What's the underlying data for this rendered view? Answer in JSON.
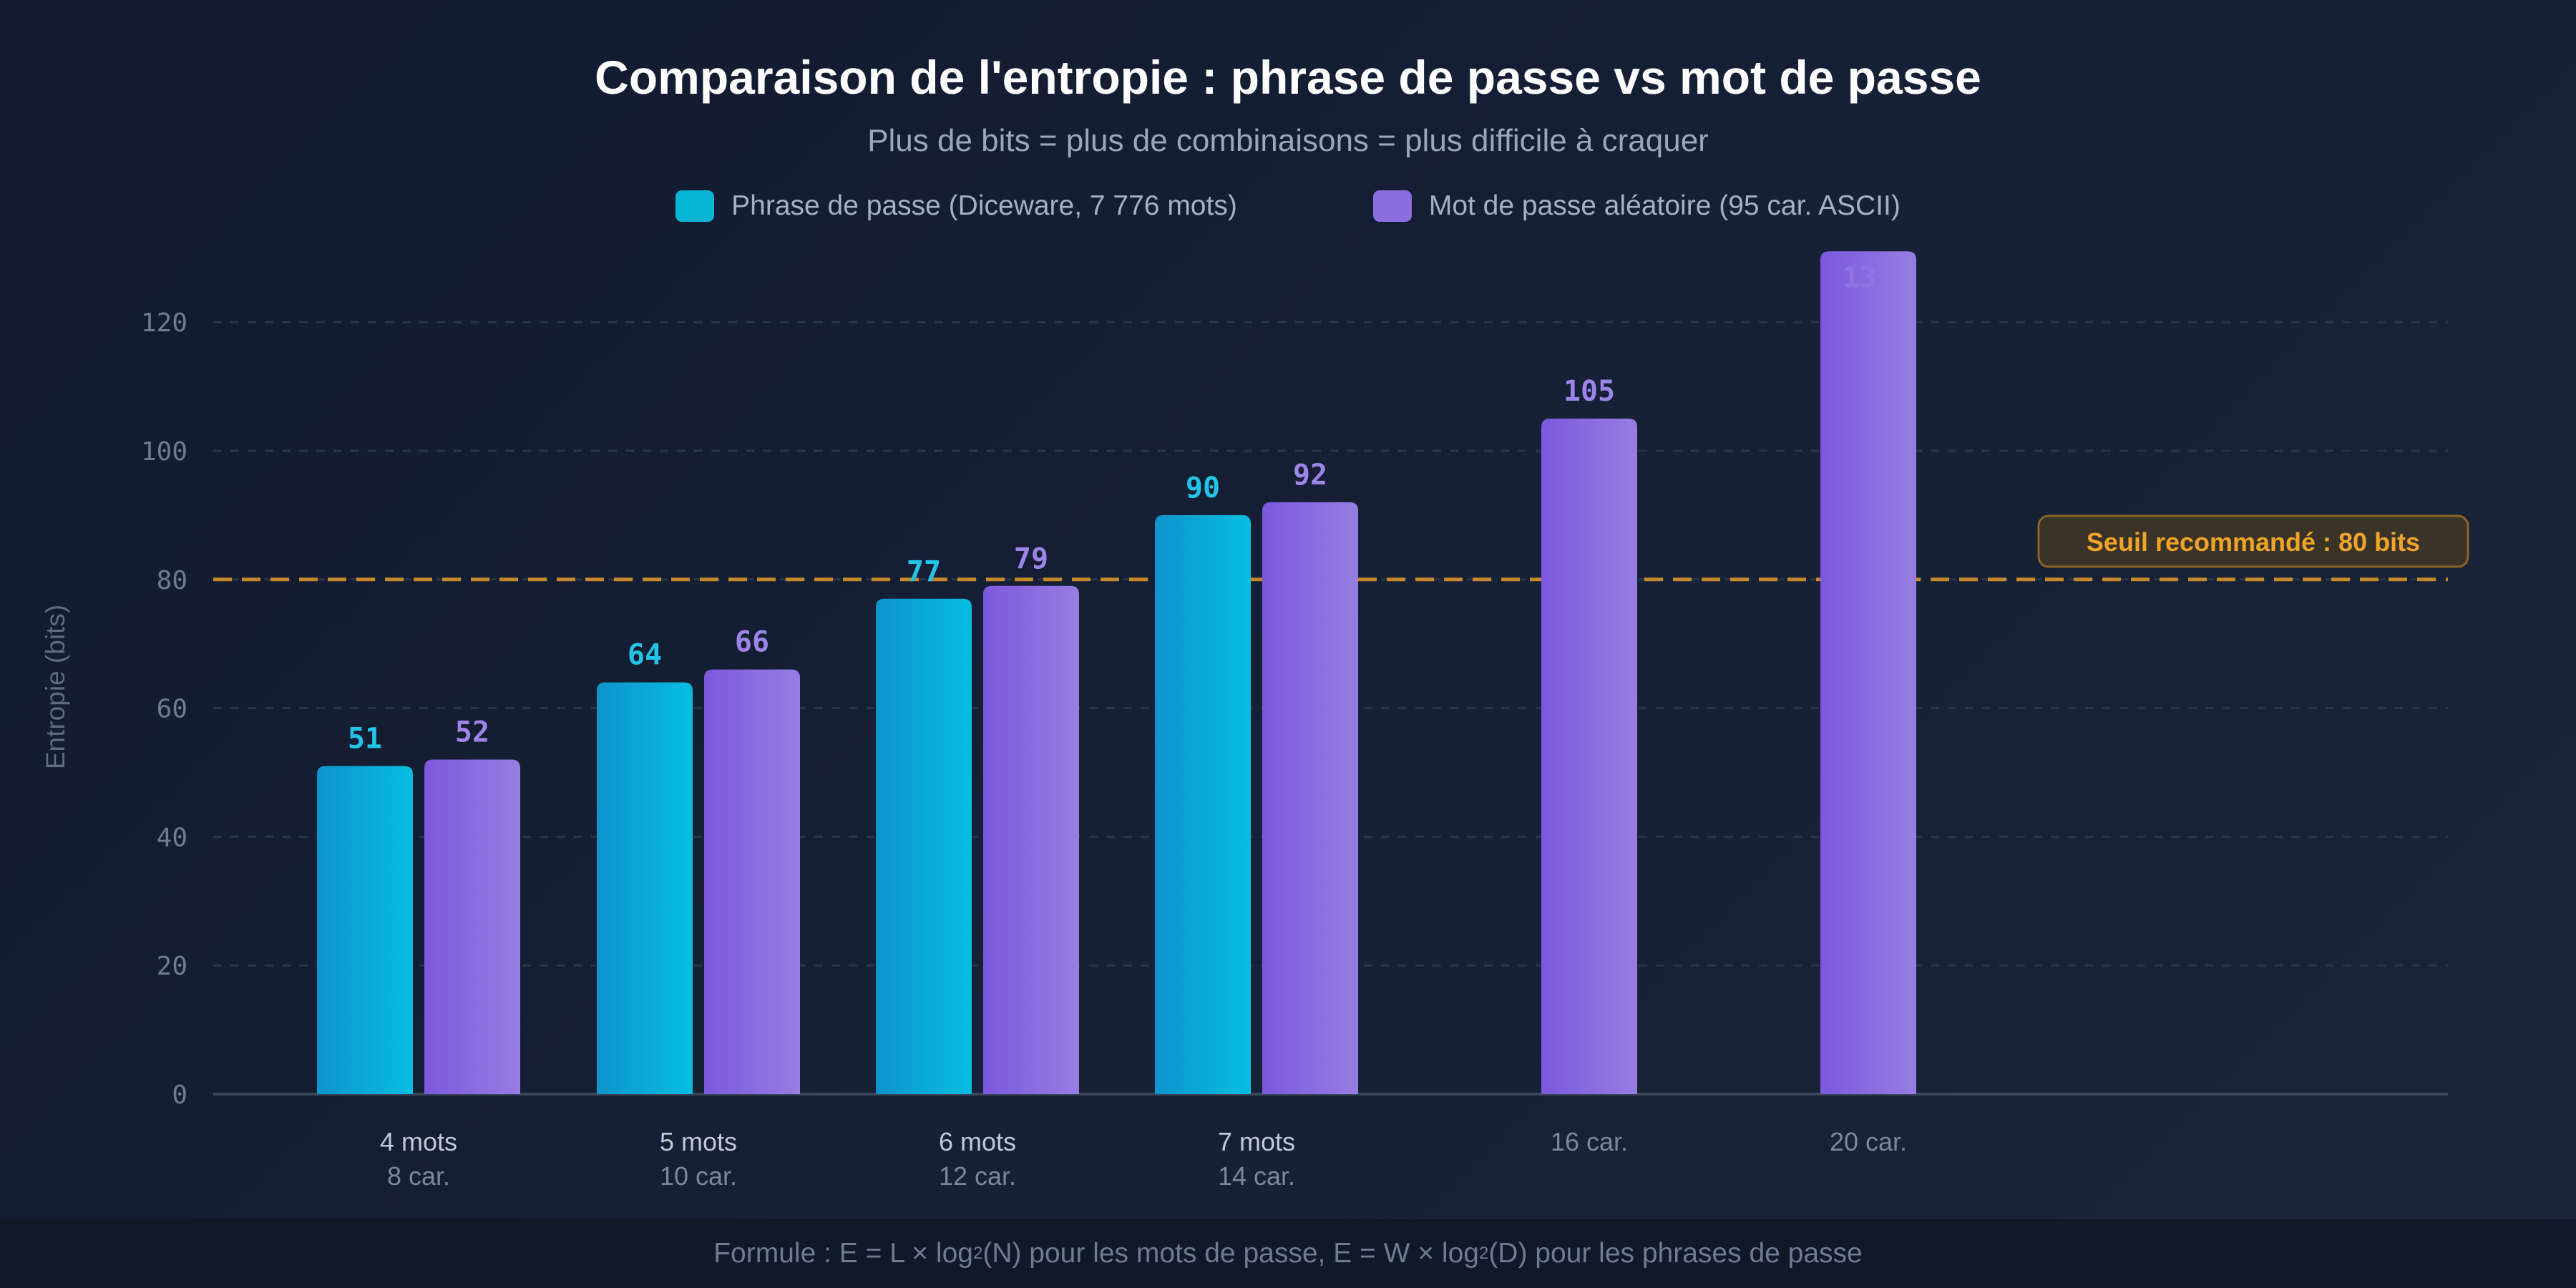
{
  "chart_data": {
    "type": "bar",
    "title": "Comparaison de l'entropie : phrase de passe vs mot de passe",
    "subtitle": "Plus de bits = plus de combinaisons = plus difficile à craquer",
    "ylabel": "Entropie (bits)",
    "xlabel": "",
    "ylim": [
      0,
      130
    ],
    "yticks": [
      0,
      20,
      40,
      60,
      80,
      100,
      120
    ],
    "grid": true,
    "legend_placement": "top-center",
    "categories": [
      {
        "label": "4 mots",
        "sublabel": "8 car."
      },
      {
        "label": "5 mots",
        "sublabel": "10 car."
      },
      {
        "label": "6 mots",
        "sublabel": "12 car."
      },
      {
        "label": "7 mots",
        "sublabel": "14 car."
      },
      {
        "label": "",
        "sublabel": "16 car."
      },
      {
        "label": "",
        "sublabel": "20 car."
      }
    ],
    "series": [
      {
        "name": "Phrase de passe (Diceware, 7 776 mots)",
        "color": "#06b6d4",
        "values": [
          51,
          64,
          77,
          90,
          null,
          null
        ]
      },
      {
        "name": "Mot de passe aléatoire (95 car. ASCII)",
        "color": "#8b6fe0",
        "values": [
          52,
          66,
          79,
          92,
          105,
          131
        ]
      }
    ],
    "threshold": {
      "value": 80,
      "label": "Seuil recommandé : 80 bits",
      "color": "#e39a2a"
    }
  },
  "footer": {
    "part1": "Formule : E = L × log",
    "sub1": "2",
    "part2": "(N) pour les mots de passe, E = W × log",
    "sub2": "2",
    "part3": "(D) pour les phrases de passe"
  }
}
